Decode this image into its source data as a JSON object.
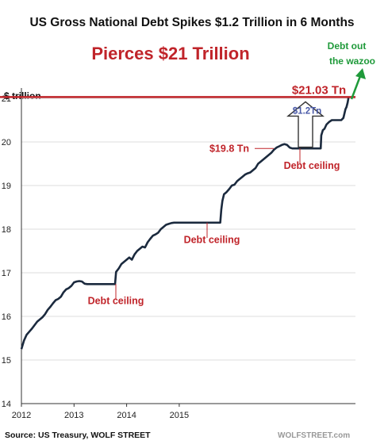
{
  "chart_data": {
    "type": "line",
    "title": "US Gross National Debt Spikes $1.2 Trillion in 6 Months",
    "subtitle": "Pierces $21 Trillion",
    "ylabel": "$ trillion",
    "xlabel": "",
    "ylim": [
      14,
      21.2
    ],
    "xlim": [
      2012,
      2018.35
    ],
    "y_ticks": [
      "14",
      "15",
      "16",
      "17",
      "18",
      "19",
      "20",
      "21"
    ],
    "x_ticks": [
      "2012",
      "2013",
      "2014",
      "2015"
    ],
    "grid": "horizontal",
    "series": [
      {
        "color": "#1b2a3e",
        "x": [
          2012.0,
          2012.05,
          2012.1,
          2012.15,
          2012.2,
          2012.25,
          2012.3,
          2012.35,
          2012.4,
          2012.45,
          2012.5,
          2012.55,
          2012.6,
          2012.65,
          2012.7,
          2012.75,
          2012.8,
          2012.85,
          2012.9,
          2012.95,
          2013.0,
          2013.05,
          2013.1,
          2013.15,
          2013.2,
          2013.25,
          2013.3,
          2013.38,
          2013.6,
          2013.72,
          2013.78,
          2013.8,
          2013.85,
          2013.9,
          2013.95,
          2014.0,
          2014.05,
          2014.1,
          2014.15,
          2014.2,
          2014.25,
          2014.3,
          2014.35,
          2014.4,
          2014.45,
          2014.5,
          2014.55,
          2014.6,
          2014.65,
          2014.7,
          2014.75,
          2014.8,
          2014.85,
          2014.9,
          2014.95,
          2015.0,
          2015.05,
          2015.1,
          2015.2,
          2015.5,
          2015.78,
          2015.8,
          2015.82,
          2015.85,
          2015.9,
          2015.95,
          2016.0,
          2016.05,
          2016.1,
          2016.15,
          2016.2,
          2016.25,
          2016.3,
          2016.35,
          2016.4,
          2016.45,
          2016.5,
          2016.55,
          2016.6,
          2016.65,
          2016.7,
          2016.75,
          2016.8,
          2016.85,
          2016.9,
          2016.95,
          2017.0,
          2017.05,
          2017.1,
          2017.15,
          2017.2,
          2017.5,
          2017.69,
          2017.7,
          2017.73,
          2017.76,
          2017.8,
          2017.85,
          2017.9,
          2017.95,
          2018.0,
          2018.02,
          2018.05,
          2018.08,
          2018.12,
          2018.16,
          2018.18,
          2018.2,
          2018.22
        ],
        "y": [
          15.25,
          15.45,
          15.58,
          15.65,
          15.72,
          15.8,
          15.88,
          15.93,
          15.98,
          16.05,
          16.15,
          16.22,
          16.3,
          16.37,
          16.4,
          16.45,
          16.55,
          16.62,
          16.65,
          16.7,
          16.78,
          16.8,
          16.81,
          16.8,
          16.75,
          16.74,
          16.74,
          16.74,
          16.74,
          16.74,
          16.74,
          17.02,
          17.1,
          17.2,
          17.25,
          17.3,
          17.35,
          17.3,
          17.42,
          17.5,
          17.55,
          17.6,
          17.58,
          17.7,
          17.78,
          17.85,
          17.88,
          17.92,
          18.0,
          18.05,
          18.1,
          18.12,
          18.14,
          18.15,
          18.15,
          18.15,
          18.15,
          18.15,
          18.15,
          18.15,
          18.15,
          18.45,
          18.65,
          18.8,
          18.85,
          18.92,
          19.0,
          19.02,
          19.1,
          19.15,
          19.2,
          19.25,
          19.28,
          19.3,
          19.35,
          19.4,
          19.5,
          19.55,
          19.6,
          19.65,
          19.7,
          19.75,
          19.82,
          19.87,
          19.9,
          19.93,
          19.95,
          19.93,
          19.87,
          19.85,
          19.85,
          19.85,
          19.85,
          20.15,
          20.27,
          20.3,
          20.4,
          20.46,
          20.5,
          20.5,
          20.5,
          20.5,
          20.5,
          20.5,
          20.55,
          20.75,
          20.8,
          20.9,
          21.03
        ]
      }
    ],
    "annotations": {
      "level_label": "$21.03 Tn",
      "level_value": 21.03,
      "spike_label": "$1.2Tn",
      "ceiling_start_label": "$19.8 Tn",
      "ceiling_labels": [
        "Debt ceiling",
        "Debt ceiling",
        "Debt ceiling"
      ],
      "wazoo_line1": "Debt out",
      "wazoo_line2": "the wazoo"
    },
    "source": "Source: US Treasury, WOLF STREET",
    "watermark": "WOLFSTREET.com",
    "colors": {
      "line": "#1b2a3e",
      "red": "#c0242a",
      "green": "#1f9a3a",
      "grid": "#dcdcdc"
    }
  }
}
